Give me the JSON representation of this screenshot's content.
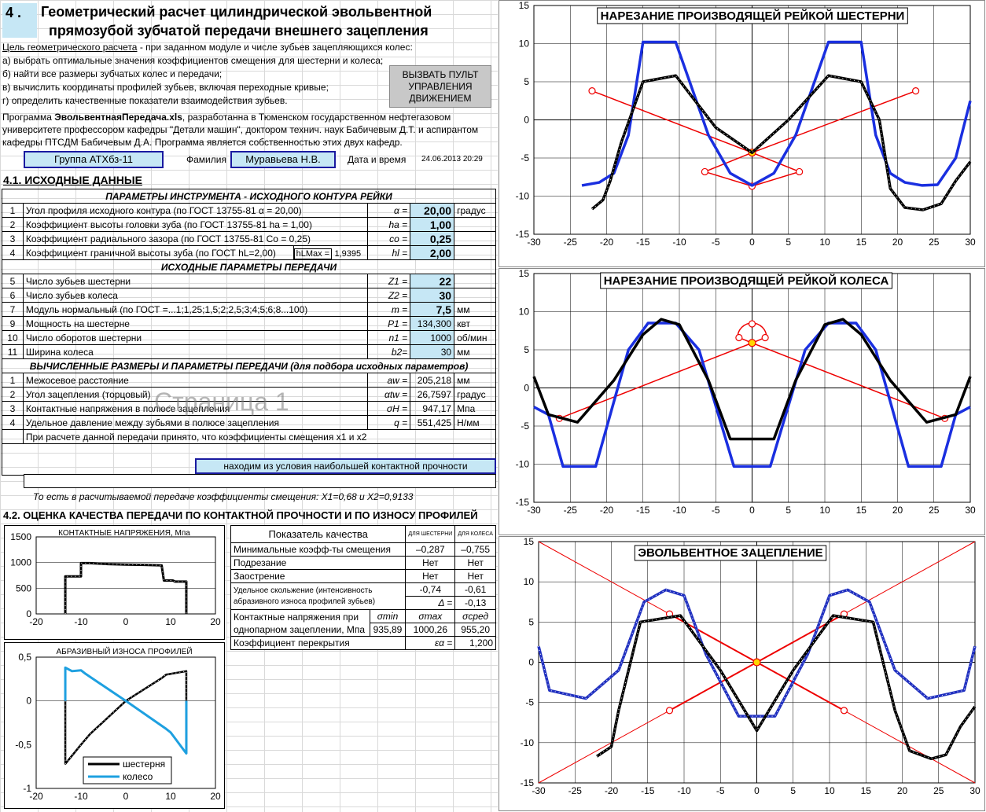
{
  "header": {
    "num": "4 .",
    "line1": "Геометрический расчет  цилиндрической эвольвентной",
    "line2": "прямозубой зубчатой передачи внешнего зацепления"
  },
  "intro": {
    "goal_label": "Цель геометрического расчета",
    "goal_rest": " - при заданном модуле и числе зубьев зацепляющихся колес:",
    "items": [
      "а) выбрать оптимальные значения коэффициентов смещения для шестерни и колеса;",
      "б) найти все размеры зубчатых колес и передачи;",
      "в) вычислить координаты профилей зубьев, включая переходные кривые;",
      "г) определить качественные показатели взаимодействия зубьев."
    ],
    "p1a": "Программа ",
    "p1b": "ЭвольвентнаяПередача.xls",
    "p1c": ", разработанна  в Тюменском государственном нефтегазовом",
    "p2": "университете профессором кафедры \"Детали машин\", доктором технич. наук Бабичевым Д.Т. и аспирантом",
    "p3": "кафедры ПТСДМ Бабичевым Д.А. Программа является собственностью этих двух кафедр."
  },
  "control_button": "ВЫЗВАТЬ ПУЛЬТ УПРАВЛЕНИЯ ДВИЖЕНИЕМ",
  "info": {
    "group": "Группа АТХбз-11",
    "surname_label": "Фамилия",
    "surname": "Муравьева Н.В.",
    "date_label": "Дата и время",
    "date": "24.06.2013 20:29"
  },
  "sec41": "4.1. ИСХОДНЫЕ  ДАННЫЕ",
  "tool": {
    "title": "ПАРАМЕТРЫ  ИНСТРУМЕНТА -  ИСХОДНОГО КОНТУРА РЕЙКИ",
    "rows": [
      {
        "n": "1",
        "name": "Угол профиля исходного контура    (по ГОСТ 13755-81     α = 20,00)",
        "sym": "α =",
        "val": "20,00",
        "unit": "градус"
      },
      {
        "n": "2",
        "name": "Коэффициент высоты головки зуба   (по ГОСТ 13755-81     ha = 1,00)",
        "sym": "ha =",
        "val": "1,00",
        "unit": ""
      },
      {
        "n": "3",
        "name": "Коэффициент радиального зазора     (по ГОСТ 13755-81    Co = 0,25)",
        "sym": "co =",
        "val": "0,25",
        "unit": ""
      },
      {
        "n": "4",
        "name": "Коэффициент граничной высоты зуба (по ГОСТ  hL=2,00)",
        "extra_label": "hLMax =",
        "extra_val": "1,9395",
        "sym": "hl =",
        "val": "2,00",
        "unit": ""
      }
    ]
  },
  "trans": {
    "title": "ИСХОДНЫЕ ПАРАМЕТРЫ  ПЕРЕДАЧИ",
    "rows": [
      {
        "n": "5",
        "name": "Число зубьев шестерни",
        "sym": "Z1 =",
        "val": "22",
        "unit": ""
      },
      {
        "n": "6",
        "name": "Число зубьев колеса",
        "sym": "Z2 =",
        "val": "30",
        "unit": ""
      },
      {
        "n": "7",
        "name": "Модуль нормальный (по ГОСТ =...1;1,25;1,5;2;2,5;3;4;5;6;8...100)",
        "sym": "m =",
        "val": "7,5",
        "unit": "мм"
      },
      {
        "n": "9",
        "name": "Мощность на шестерне",
        "sym": "P1 =",
        "val": "134,300",
        "unit": "квт"
      },
      {
        "n": "10",
        "name": "Число оборотов шестерни",
        "sym": "n1 =",
        "val": "1000",
        "unit": "об/мин"
      },
      {
        "n": "11",
        "name": "Ширина колеса",
        "sym": "b2=",
        "val": "30",
        "unit": "мм"
      }
    ]
  },
  "calc": {
    "title": "ВЫЧИСЛЕННЫЕ РАЗМЕРЫ И ПАРАМЕТРЫ  ПЕРЕДАЧИ (для подбора исходных параметров)",
    "rows": [
      {
        "n": "1",
        "name": "Межосевое расстояние",
        "sym": "aw =",
        "val": "205,218",
        "unit": "мм"
      },
      {
        "n": "2",
        "name": "Угол зацепления (торцовый)",
        "sym": "αtw =",
        "val": "26,7597",
        "unit": "градус"
      },
      {
        "n": "3",
        "name": "Контактные напряжения в полюсе зацепления",
        "sym": "σH =",
        "val": "947,17",
        "unit": "Мпа"
      },
      {
        "n": "4",
        "name": "Удельное давление между зубьями в полюсе зацепления",
        "sym": "q =",
        "val": "551,425",
        "unit": "Н/мм"
      }
    ],
    "note": "При расчете данной передачи принято, что коэффициенты смещения x1 и x2",
    "note_box": "находим из условия наибольшей контактной прочности",
    "result": "То есть в расчитываемой передаче коэффициенты смещения:    X1=0,68  и  X2=0,9133"
  },
  "watermark": "Страница 1",
  "sec42": "4.2. ОЦЕНКА КАЧЕСТВА ПЕРЕДАЧИ ПО КОНТАКТНОЙ ПРОЧНОСТИ И ПО ИЗНОСУ ПРОФИЛЕЙ",
  "quality": {
    "h_name": "Показатель качества",
    "h1": "для шестерни",
    "h2": "для колеса",
    "r1": {
      "name": "Минимальные коэфф-ты смещения",
      "a": "–0,287",
      "b": "–0,755"
    },
    "r2": {
      "name": "Подрезание",
      "a": "Нет",
      "b": "Нет"
    },
    "r3": {
      "name": "Заострение",
      "a": "Нет",
      "b": "Нет"
    },
    "r4": {
      "name1": "Удельное скольжение (интенсивность",
      "name2": "абразивного износа профилей зубьев)",
      "a": "-0,74",
      "b": "-0,61",
      "dlabel": "Δ =",
      "d": "-0,13"
    },
    "r5": {
      "name1": "Контактные напряжения при",
      "name2": "однопарном  зацеплении, Мпа",
      "h1": "σmin",
      "h2": "σmax",
      "h3": "σсред",
      "v1": "935,89",
      "v2": "1000,26",
      "v3": "955,20"
    },
    "r6": {
      "name": "Коэффициент перекрытия",
      "sym": "εα =",
      "val": "1,200"
    }
  },
  "chart_data": [
    {
      "type": "line",
      "title": "КОНТАКТНЫЕ   НАПРЯЖЕНИЯ, Мпа",
      "xlim": [
        -20,
        20
      ],
      "ylim": [
        0,
        1500
      ],
      "xticks": [
        "-20",
        "-10",
        "0",
        "10",
        "20"
      ],
      "yticks": [
        "0",
        "500",
        "1000",
        "1500"
      ],
      "series": [
        {
          "x": [
            -13.5,
            -13.5,
            -13.2,
            -10,
            -10,
            -8,
            -4,
            0,
            4,
            8,
            8.5,
            10.5,
            11,
            13.5,
            13.5
          ],
          "values": [
            0,
            730,
            730,
            730,
            990,
            990,
            970,
            960,
            955,
            945,
            650,
            650,
            630,
            630,
            0
          ]
        }
      ]
    },
    {
      "type": "line",
      "title": "АБРАЗИВНЫЙ  ИЗНОСА ПРОФИЛЕЙ",
      "xlim": [
        -20,
        20
      ],
      "ylim": [
        -1,
        0.5
      ],
      "xticks": [
        "-20",
        "-10",
        "0",
        "10",
        "20"
      ],
      "yticks": [
        "-1",
        "-0,5",
        "0",
        "0,5"
      ],
      "series": [
        {
          "name": "шестерня",
          "x": [
            -13.5,
            -13.5,
            -10,
            -9,
            -8,
            0,
            8,
            9,
            13.5,
            13.5
          ],
          "values": [
            0,
            -0.72,
            -0.5,
            -0.44,
            -0.38,
            0,
            0.26,
            0.3,
            0.34,
            -0.6
          ]
        },
        {
          "name": "колесо",
          "x": [
            -13.5,
            -13.5,
            -12,
            -10,
            -9,
            0,
            9,
            10,
            13.5,
            13.5
          ],
          "values": [
            0,
            0.38,
            0.34,
            0.35,
            0.31,
            0,
            -0.32,
            -0.36,
            -0.6,
            0
          ]
        }
      ]
    },
    {
      "type": "line",
      "title": "НАРЕЗАНИЕ ПРОИЗВОДЯЩЕЙ РЕЙКОЙ ШЕСТЕРНИ",
      "xlim": [
        -30,
        30
      ],
      "ylim": [
        -15,
        15
      ],
      "xticks": [
        "-30",
        "-25",
        "-20",
        "-15",
        "-10",
        "-5",
        "0",
        "5",
        "10",
        "15",
        "20",
        "25",
        "30"
      ],
      "yticks": [
        "-15",
        "-10",
        "-5",
        "0",
        "5",
        "10",
        "15"
      ],
      "series": [
        {
          "x": [
            -23.4,
            -21,
            -19,
            -17,
            -15,
            -10.5,
            -6,
            -3,
            0,
            3,
            6,
            10.5,
            15,
            17,
            19,
            21,
            23.4,
            25.5,
            28,
            30
          ],
          "values": [
            -8.6,
            -8.2,
            -7,
            -2,
            10.2,
            10.2,
            -2,
            -7,
            -8.6,
            -7,
            -2,
            10.2,
            10.2,
            -2,
            -7,
            -8.2,
            -8.6,
            -8.5,
            -5,
            2.5
          ]
        },
        {
          "x": [
            -22,
            -20.5,
            -19.5,
            -18,
            -15,
            -10.5,
            -5,
            0,
            5,
            10.5,
            15,
            17.5,
            19,
            21,
            23.5,
            26,
            28,
            30
          ],
          "values": [
            -11.7,
            -10.5,
            -8,
            -3,
            5,
            5.8,
            -1,
            -4.3,
            0,
            5.8,
            5,
            0,
            -9,
            -11.5,
            -11.8,
            -11,
            -8,
            -5.5
          ]
        }
      ]
    },
    {
      "type": "line",
      "title": "НАРЕЗАНИЕ ПРОИЗВОДЯЩЕЙ РЕЙКОЙ КОЛЕСА",
      "xlim": [
        -30,
        30
      ],
      "ylim": [
        -15,
        15
      ],
      "xticks": [
        "-30",
        "-25",
        "-20",
        "-15",
        "-10",
        "-5",
        "0",
        "5",
        "10",
        "15",
        "20",
        "25",
        "30"
      ],
      "yticks": [
        "-15",
        "-10",
        "-5",
        "0",
        "5",
        "10",
        "15"
      ],
      "series": [
        {
          "x": [
            -30,
            -28,
            -26,
            -21.5,
            -17,
            -14.3,
            -10.5,
            -7.3,
            -2.5,
            2.5,
            7.3,
            10.5,
            14.3,
            17,
            21.5,
            26,
            28,
            30
          ],
          "values": [
            -2.5,
            -3.5,
            -10.3,
            -10.3,
            5,
            8.5,
            8.5,
            5,
            -10.3,
            -10.3,
            5,
            8.5,
            8.5,
            5,
            -10.3,
            -10.3,
            -3.5,
            -2.5
          ]
        },
        {
          "x": [
            -30,
            -28,
            -24,
            -19,
            -15,
            -12.5,
            -10,
            -6,
            -3,
            3,
            6,
            10,
            12.5,
            15,
            19,
            24,
            28,
            30
          ],
          "values": [
            1.5,
            -3.5,
            -4.5,
            1,
            7,
            9,
            8.3,
            1,
            -6.7,
            -6.7,
            1,
            8.3,
            9,
            7,
            1,
            -4.5,
            -3.5,
            1.5
          ]
        }
      ]
    },
    {
      "type": "line",
      "title": "ЭВОЛЬВЕНТНОЕ ЗАЦЕПЛЕНИЕ",
      "xlim": [
        -30,
        30
      ],
      "ylim": [
        -15,
        15
      ],
      "xticks": [
        "-30",
        "-25",
        "-20",
        "-15",
        "-10",
        "-5",
        "0",
        "5",
        "10",
        "15",
        "20",
        "25",
        "30"
      ],
      "yticks": [
        "-15",
        "-10",
        "-5",
        "0",
        "5",
        "10",
        "15"
      ],
      "series": [
        {
          "x": [
            -30,
            -28.5,
            -23.5,
            -19,
            -15.5,
            -12.5,
            -10,
            -7,
            -2.5,
            2.5,
            7,
            10,
            12.5,
            15.5,
            19,
            23.5,
            28.5,
            30
          ],
          "values": [
            2,
            -3.5,
            -4.5,
            -1,
            7.5,
            9,
            8.3,
            1,
            -6.7,
            -6.7,
            1,
            8.3,
            9,
            7.5,
            -1,
            -4.5,
            -3.5,
            2
          ]
        },
        {
          "x": [
            -22,
            -20,
            -19,
            -16,
            -10.5,
            -5,
            0,
            5,
            10.5,
            16,
            19,
            21,
            24,
            26,
            28,
            30
          ],
          "values": [
            -11.7,
            -10.5,
            -6,
            5,
            5.8,
            -1,
            -8.5,
            -1,
            5.8,
            5,
            -6,
            -11,
            -12,
            -11.5,
            -8,
            -5.5
          ]
        }
      ]
    }
  ]
}
